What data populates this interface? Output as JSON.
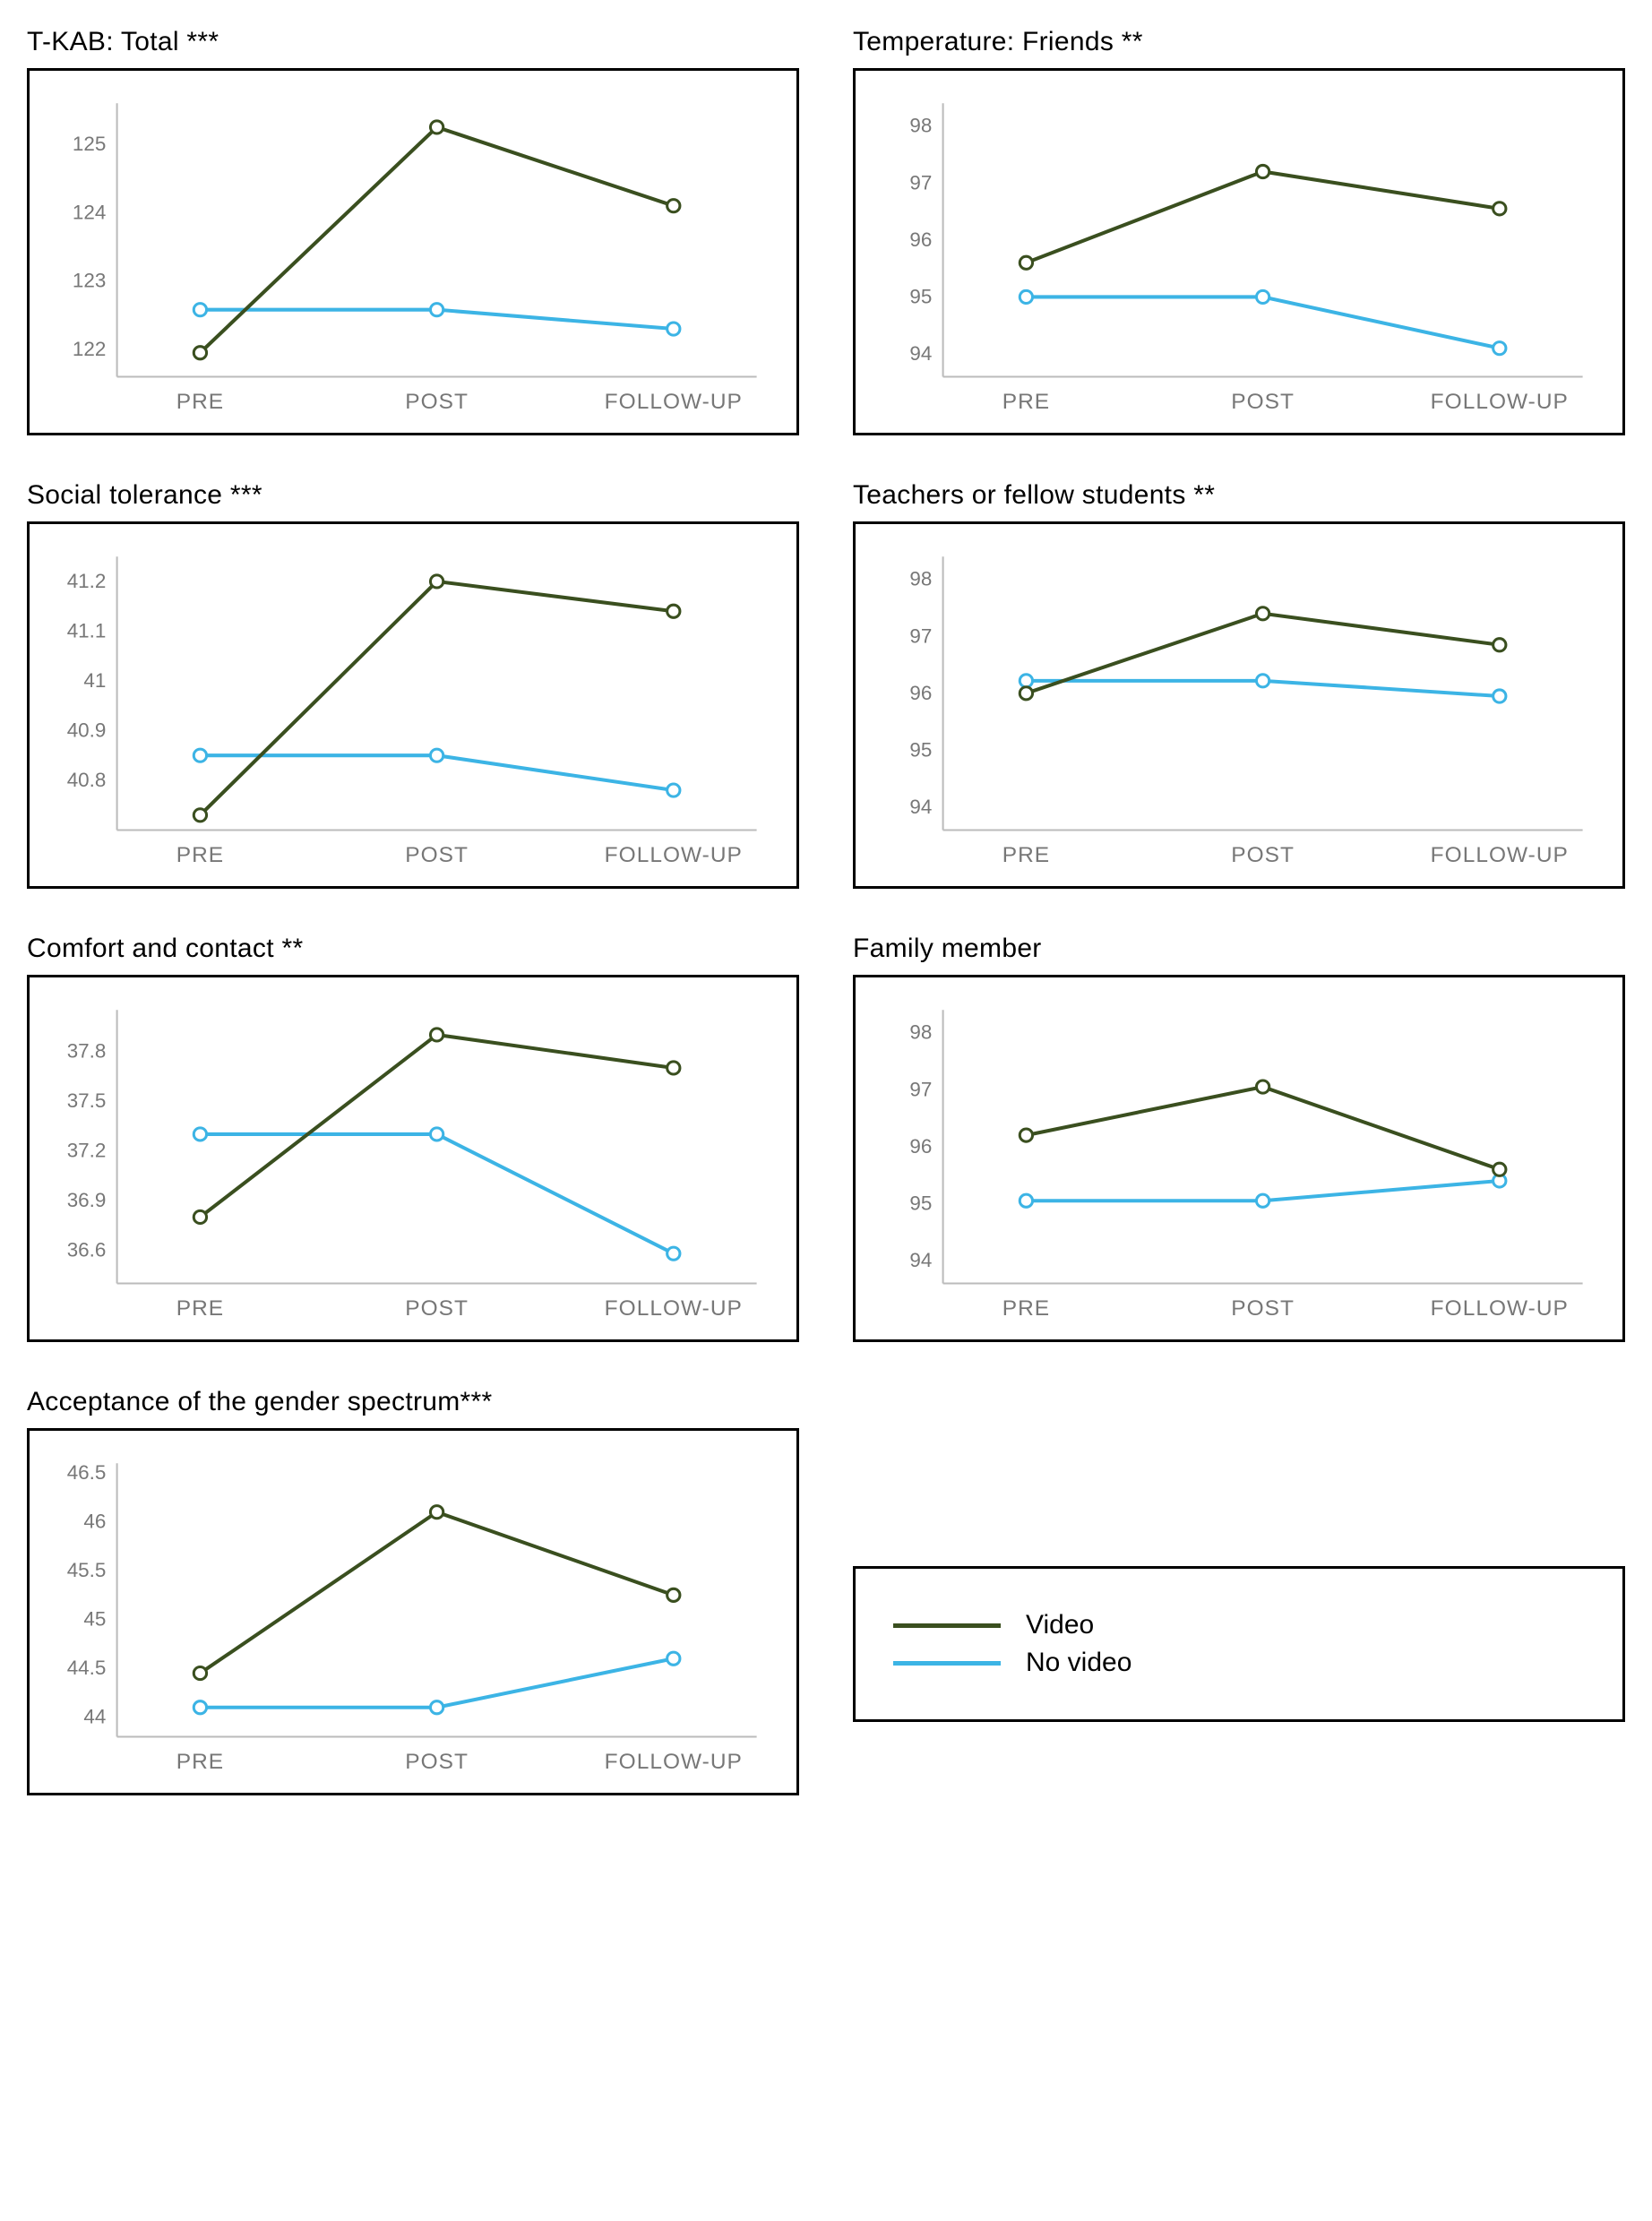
{
  "colors": {
    "video": "#3a4f1f",
    "no_video": "#3cb4e5",
    "axis": "#bbbbbb",
    "marker_fill": "#ffffff",
    "text_muted": "#777777"
  },
  "x_labels": [
    "PRE",
    "POST",
    "FOLLOW-UP"
  ],
  "legend": {
    "video": "Video",
    "no_video": "No video"
  },
  "charts": [
    {
      "id": "tkab-total",
      "title": "T-KAB: Total ***",
      "y_ticks": [
        122,
        123,
        124,
        125
      ],
      "y_min": 121.6,
      "y_max": 125.6,
      "video": [
        121.95,
        125.25,
        124.1
      ],
      "no_video": [
        122.58,
        122.58,
        122.3
      ]
    },
    {
      "id": "temp-friends",
      "title": "Temperature: Friends **",
      "y_ticks": [
        94,
        95,
        96,
        97,
        98
      ],
      "y_min": 93.6,
      "y_max": 98.4,
      "video": [
        95.6,
        97.2,
        96.55
      ],
      "no_video": [
        95.0,
        95.0,
        94.1
      ]
    },
    {
      "id": "social-tolerance",
      "title": "Social tolerance ***",
      "y_ticks": [
        40.8,
        40.9,
        41,
        41.1,
        41.2
      ],
      "y_min": 40.7,
      "y_max": 41.25,
      "video": [
        40.73,
        41.2,
        41.14
      ],
      "no_video": [
        40.85,
        40.85,
        40.78
      ]
    },
    {
      "id": "teachers-students",
      "title": "Teachers or fellow students **",
      "y_ticks": [
        94,
        95,
        96,
        97,
        98
      ],
      "y_min": 93.6,
      "y_max": 98.4,
      "video": [
        96.0,
        97.4,
        96.85
      ],
      "no_video": [
        96.22,
        96.22,
        95.95
      ]
    },
    {
      "id": "comfort-contact",
      "title": "Comfort and contact **",
      "y_ticks": [
        36.6,
        36.9,
        37.2,
        37.5,
        37.8
      ],
      "y_min": 36.4,
      "y_max": 38.05,
      "video": [
        36.8,
        37.9,
        37.7
      ],
      "no_video": [
        37.3,
        37.3,
        36.58
      ]
    },
    {
      "id": "family-member",
      "title": "Family member",
      "y_ticks": [
        94,
        95,
        96,
        97,
        98
      ],
      "y_min": 93.6,
      "y_max": 98.4,
      "video": [
        96.2,
        97.05,
        95.6
      ],
      "no_video": [
        95.05,
        95.05,
        95.4
      ]
    },
    {
      "id": "acceptance-spectrum",
      "title": "Acceptance of the gender spectrum***",
      "y_ticks": [
        44,
        44.5,
        45,
        45.5,
        46,
        46.5
      ],
      "y_min": 43.8,
      "y_max": 46.6,
      "video": [
        44.45,
        46.1,
        45.25
      ],
      "no_video": [
        44.1,
        44.1,
        44.6
      ]
    }
  ]
}
